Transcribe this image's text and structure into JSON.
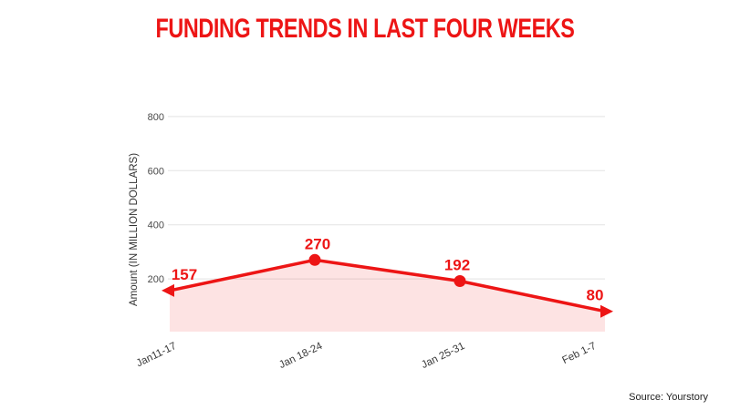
{
  "page": {
    "title": "FUNDING TRENDS IN LAST FOUR WEEKS",
    "source": "Source: Yourstory"
  },
  "colors": {
    "accent": "#ed1515",
    "grid": "#e3e3e3",
    "text_dark": "#3a3a3a",
    "area_fill_opacity": "0.12",
    "background": "#ffffff"
  },
  "chart_data": {
    "type": "area",
    "title": "FUNDING TRENDS IN LAST FOUR WEEKS",
    "categories": [
      "Jan11-17",
      "Jan 18-24",
      "Jan 25-31",
      "Feb 1-7"
    ],
    "values": [
      157,
      270,
      192,
      80
    ],
    "data_labels": [
      "157",
      "270",
      "192",
      "80"
    ],
    "xlabel": "",
    "ylabel": "Amount (IN MILLION DOLLARS)",
    "y_ticks": [
      200,
      400,
      600,
      800
    ],
    "ylim": [
      0,
      880
    ],
    "grid": true,
    "legend": false,
    "line_color": "#ed1515",
    "area_color": "#ed1515 at 12% opacity",
    "markers": "filled circles; arrow-shaped markers clipped at first and last point",
    "source": "Source: Yourstory"
  }
}
